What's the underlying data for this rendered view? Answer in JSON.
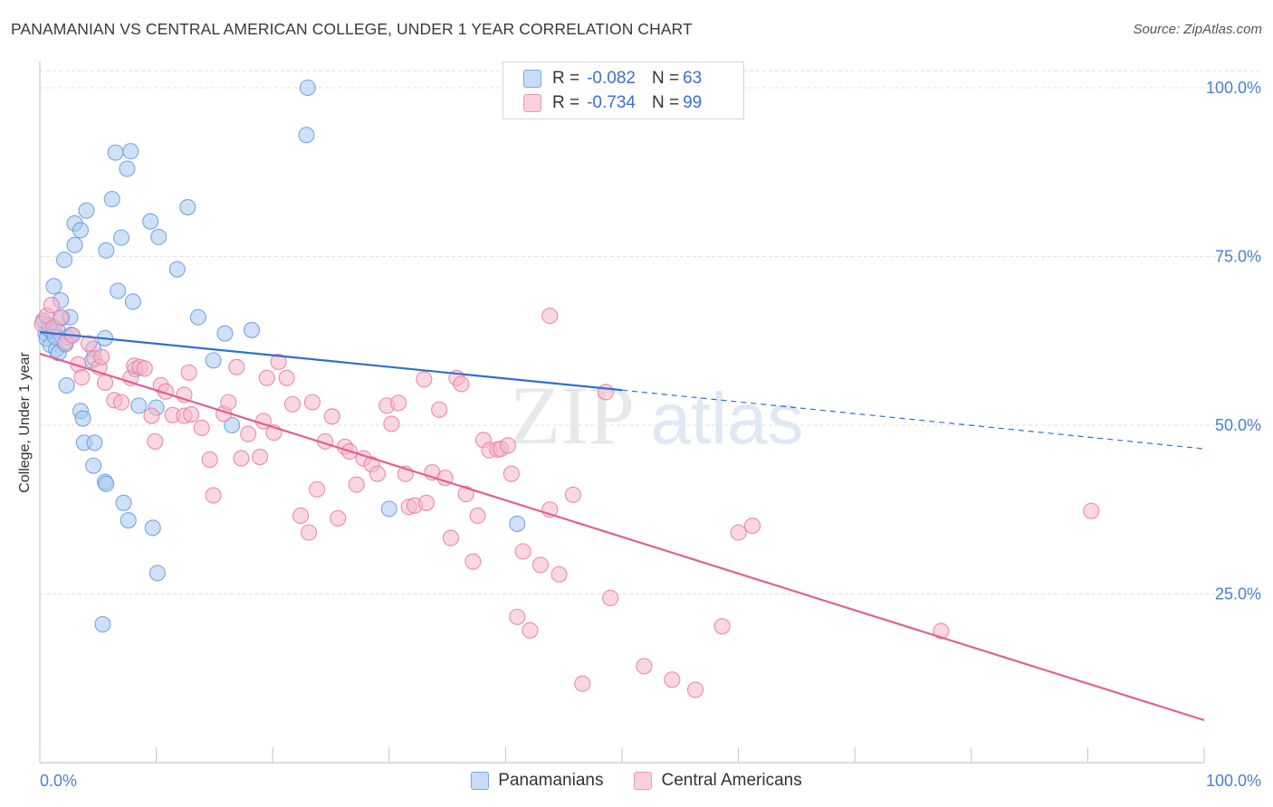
{
  "header": {
    "title": "PANAMANIAN VS CENTRAL AMERICAN COLLEGE, UNDER 1 YEAR CORRELATION CHART",
    "source": "Source: ZipAtlas.com"
  },
  "watermark": {
    "zip": "ZIP",
    "atlas": "atlas"
  },
  "legend": {
    "rows": [
      {
        "r_label": "R = ",
        "r_value": "-0.082",
        "n_label": "N = ",
        "n_value": "63",
        "color": "#a8c8f0"
      },
      {
        "r_label": "R = ",
        "r_value": "-0.734",
        "n_label": "N = ",
        "n_value": "99",
        "color": "#f7b6c8"
      }
    ]
  },
  "chart_data": {
    "type": "scatter",
    "title": "PANAMANIAN VS CENTRAL AMERICAN COLLEGE, UNDER 1 YEAR CORRELATION CHART",
    "xlabel": "",
    "ylabel": "College, Under 1 year",
    "xlim": [
      0,
      100
    ],
    "ylim": [
      0,
      103
    ],
    "x_tick_labels": [
      "0.0%",
      "100.0%"
    ],
    "y_tick_labels": [
      "25.0%",
      "50.0%",
      "75.0%",
      "100.0%"
    ],
    "y_ticks": [
      25,
      50,
      75,
      100
    ],
    "grid": true,
    "legend_position": "top-center",
    "series": [
      {
        "name": "Panamanians",
        "color": "#6b9de0",
        "fill": "#a8c8f0",
        "trend": {
          "x0": 0,
          "y0": 63.8,
          "x1": 50,
          "y1": 55.2,
          "dash_to_x": 100,
          "dash_to_y": 46.5
        },
        "points": [
          [
            0.3,
            65.5
          ],
          [
            0.5,
            63.6
          ],
          [
            0.6,
            62.8
          ],
          [
            0.8,
            64.2
          ],
          [
            0.9,
            61.9
          ],
          [
            1.0,
            64.0
          ],
          [
            1.2,
            70.6
          ],
          [
            1.4,
            61.2
          ],
          [
            1.5,
            64.1
          ],
          [
            1.6,
            60.7
          ],
          [
            1.8,
            68.5
          ],
          [
            1.9,
            65.9
          ],
          [
            2.1,
            74.5
          ],
          [
            2.3,
            55.9
          ],
          [
            2.4,
            63.0
          ],
          [
            2.6,
            66.0
          ],
          [
            2.7,
            63.4
          ],
          [
            3.0,
            76.7
          ],
          [
            3.0,
            79.9
          ],
          [
            3.5,
            78.9
          ],
          [
            3.5,
            52.1
          ],
          [
            3.7,
            51.0
          ],
          [
            3.8,
            47.4
          ],
          [
            4.0,
            81.8
          ],
          [
            4.5,
            59.6
          ],
          [
            4.6,
            44.0
          ],
          [
            4.7,
            47.4
          ],
          [
            4.6,
            61.3
          ],
          [
            5.6,
            41.6
          ],
          [
            5.7,
            41.3
          ],
          [
            5.7,
            75.9
          ],
          [
            5.6,
            62.9
          ],
          [
            6.2,
            83.5
          ],
          [
            6.5,
            90.4
          ],
          [
            6.7,
            69.9
          ],
          [
            7.0,
            77.8
          ],
          [
            7.2,
            38.5
          ],
          [
            7.5,
            88.0
          ],
          [
            7.6,
            35.9
          ],
          [
            7.8,
            90.6
          ],
          [
            8.0,
            68.3
          ],
          [
            8.2,
            58.3
          ],
          [
            8.5,
            52.9
          ],
          [
            9.5,
            80.2
          ],
          [
            9.7,
            34.8
          ],
          [
            10.0,
            52.6
          ],
          [
            10.1,
            28.1
          ],
          [
            10.2,
            77.9
          ],
          [
            11.8,
            73.1
          ],
          [
            12.7,
            82.3
          ],
          [
            13.6,
            66.0
          ],
          [
            14.9,
            59.6
          ],
          [
            15.9,
            63.6
          ],
          [
            16.5,
            50.0
          ],
          [
            18.2,
            64.1
          ],
          [
            23.0,
            100.0
          ],
          [
            22.9,
            93.0
          ],
          [
            30.0,
            37.6
          ],
          [
            41.0,
            35.4
          ],
          [
            5.4,
            20.5
          ],
          [
            0.8,
            64.8
          ],
          [
            1.3,
            63.1
          ],
          [
            2.2,
            62.0
          ]
        ]
      },
      {
        "name": "Central Americans",
        "color": "#e97fa3",
        "fill": "#f7b6c8",
        "trend": {
          "x0": 0,
          "y0": 60.6,
          "x1": 100,
          "y1": 6.3
        },
        "points": [
          [
            0.2,
            65.0
          ],
          [
            0.6,
            66.2
          ],
          [
            1.2,
            64.5
          ],
          [
            1.8,
            66.0
          ],
          [
            2.2,
            62.3
          ],
          [
            2.8,
            63.3
          ],
          [
            3.3,
            59.0
          ],
          [
            3.6,
            57.1
          ],
          [
            4.2,
            62.1
          ],
          [
            4.7,
            59.9
          ],
          [
            5.1,
            58.6
          ],
          [
            5.3,
            60.1
          ],
          [
            5.6,
            56.3
          ],
          [
            6.4,
            53.7
          ],
          [
            7.0,
            53.4
          ],
          [
            7.8,
            57.0
          ],
          [
            8.1,
            58.8
          ],
          [
            8.6,
            58.6
          ],
          [
            9.0,
            58.4
          ],
          [
            9.6,
            51.4
          ],
          [
            9.9,
            47.6
          ],
          [
            10.4,
            55.9
          ],
          [
            10.8,
            55.0
          ],
          [
            11.4,
            51.5
          ],
          [
            12.4,
            51.4
          ],
          [
            12.4,
            54.5
          ],
          [
            12.8,
            57.8
          ],
          [
            13.0,
            51.6
          ],
          [
            13.9,
            49.6
          ],
          [
            14.6,
            44.9
          ],
          [
            14.9,
            39.6
          ],
          [
            15.8,
            51.7
          ],
          [
            16.2,
            53.4
          ],
          [
            16.9,
            58.6
          ],
          [
            17.3,
            45.1
          ],
          [
            17.9,
            48.7
          ],
          [
            18.9,
            45.3
          ],
          [
            19.2,
            50.6
          ],
          [
            19.5,
            57.0
          ],
          [
            20.1,
            48.9
          ],
          [
            20.5,
            59.4
          ],
          [
            21.2,
            57.0
          ],
          [
            21.7,
            53.1
          ],
          [
            22.4,
            36.6
          ],
          [
            23.1,
            34.1
          ],
          [
            23.4,
            53.4
          ],
          [
            23.8,
            40.5
          ],
          [
            24.5,
            47.6
          ],
          [
            25.1,
            51.3
          ],
          [
            25.6,
            36.2
          ],
          [
            26.2,
            46.8
          ],
          [
            26.6,
            46.1
          ],
          [
            27.2,
            41.2
          ],
          [
            27.8,
            45.1
          ],
          [
            28.5,
            44.2
          ],
          [
            29.0,
            42.8
          ],
          [
            29.8,
            52.9
          ],
          [
            30.2,
            50.2
          ],
          [
            30.8,
            53.3
          ],
          [
            31.4,
            42.8
          ],
          [
            31.7,
            37.9
          ],
          [
            32.2,
            38.1
          ],
          [
            33.0,
            56.8
          ],
          [
            33.2,
            38.5
          ],
          [
            33.7,
            43.0
          ],
          [
            34.3,
            52.3
          ],
          [
            34.8,
            42.2
          ],
          [
            35.3,
            33.3
          ],
          [
            35.8,
            57.0
          ],
          [
            36.2,
            56.1
          ],
          [
            36.6,
            39.8
          ],
          [
            37.2,
            29.8
          ],
          [
            37.6,
            36.6
          ],
          [
            38.1,
            47.8
          ],
          [
            38.6,
            46.3
          ],
          [
            39.3,
            46.4
          ],
          [
            39.6,
            46.5
          ],
          [
            40.2,
            47.0
          ],
          [
            40.5,
            42.8
          ],
          [
            41.0,
            21.6
          ],
          [
            41.5,
            31.3
          ],
          [
            42.1,
            19.6
          ],
          [
            43.0,
            29.3
          ],
          [
            43.8,
            66.2
          ],
          [
            43.8,
            37.5
          ],
          [
            44.6,
            27.9
          ],
          [
            45.8,
            39.7
          ],
          [
            46.6,
            11.7
          ],
          [
            48.6,
            54.9
          ],
          [
            49.0,
            24.4
          ],
          [
            51.9,
            14.3
          ],
          [
            54.3,
            12.3
          ],
          [
            56.3,
            10.8
          ],
          [
            58.6,
            20.2
          ],
          [
            60.0,
            34.1
          ],
          [
            61.2,
            35.1
          ],
          [
            77.4,
            19.5
          ],
          [
            90.3,
            37.3
          ],
          [
            1.0,
            67.8
          ]
        ]
      }
    ]
  },
  "bottom_legend": {
    "items": [
      {
        "label": "Panamanians",
        "color": "#a8c8f0"
      },
      {
        "label": "Central Americans",
        "color": "#f7b6c8"
      }
    ]
  }
}
